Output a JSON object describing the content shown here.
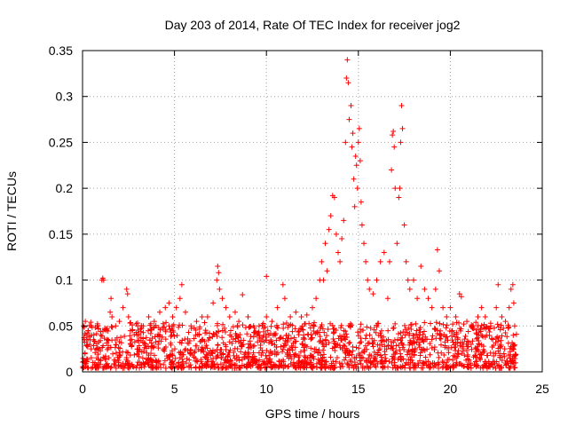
{
  "chart_data": {
    "type": "scatter",
    "title": "Day 203 of 2014, Rate Of TEC Index for receiver jog2",
    "xlabel": "GPS time / hours",
    "ylabel": "ROTI / TECUs",
    "xlim": [
      0,
      25
    ],
    "ylim": [
      0,
      0.35
    ],
    "x_ticks": [
      0,
      5,
      10,
      15,
      20,
      25
    ],
    "y_ticks": [
      0,
      0.05,
      0.1,
      0.15,
      0.2,
      0.25,
      0.3,
      0.35
    ],
    "x_tick_labels": [
      "0",
      "5",
      "10",
      "15",
      "20",
      "25"
    ],
    "y_tick_labels": [
      "0",
      "0.05",
      "0.1",
      "0.15",
      "0.2",
      "0.25",
      "0.3",
      "0.35"
    ],
    "grid": true,
    "marker": "+",
    "color": "#ff0000",
    "series": [
      {
        "name": "ROTI",
        "points": [
          [
            0.05,
            0.05
          ],
          [
            0.1,
            0.035
          ],
          [
            0.15,
            0.055
          ],
          [
            0.2,
            0.04
          ],
          [
            0.3,
            0.045
          ],
          [
            0.4,
            0.03
          ],
          [
            0.5,
            0.04
          ],
          [
            0.6,
            0.035
          ],
          [
            0.8,
            0.05
          ],
          [
            1.0,
            0.04
          ],
          [
            1.05,
            0.1
          ],
          [
            1.1,
            0.102
          ],
          [
            1.15,
            0.1
          ],
          [
            1.3,
            0.045
          ],
          [
            1.5,
            0.065
          ],
          [
            1.55,
            0.08
          ],
          [
            1.6,
            0.06
          ],
          [
            1.8,
            0.05
          ],
          [
            2.0,
            0.055
          ],
          [
            2.2,
            0.07
          ],
          [
            2.4,
            0.09
          ],
          [
            2.45,
            0.085
          ],
          [
            2.5,
            0.06
          ],
          [
            2.7,
            0.045
          ],
          [
            3.0,
            0.05
          ],
          [
            3.3,
            0.05
          ],
          [
            3.6,
            0.06
          ],
          [
            3.9,
            0.055
          ],
          [
            4.2,
            0.065
          ],
          [
            4.5,
            0.07
          ],
          [
            4.7,
            0.075
          ],
          [
            4.9,
            0.06
          ],
          [
            5.1,
            0.07
          ],
          [
            5.3,
            0.08
          ],
          [
            5.4,
            0.095
          ],
          [
            5.6,
            0.065
          ],
          [
            5.9,
            0.05
          ],
          [
            6.2,
            0.055
          ],
          [
            6.5,
            0.06
          ],
          [
            6.8,
            0.06
          ],
          [
            7.1,
            0.075
          ],
          [
            7.3,
            0.1
          ],
          [
            7.35,
            0.115
          ],
          [
            7.4,
            0.108
          ],
          [
            7.45,
            0.09
          ],
          [
            7.6,
            0.08
          ],
          [
            7.8,
            0.07
          ],
          [
            8.0,
            0.06
          ],
          [
            8.3,
            0.065
          ],
          [
            8.5,
            0.055
          ],
          [
            8.7,
            0.084
          ],
          [
            9.0,
            0.06
          ],
          [
            9.3,
            0.05
          ],
          [
            9.6,
            0.05
          ],
          [
            10.0,
            0.104
          ],
          [
            10.0,
            0.06
          ],
          [
            10.3,
            0.055
          ],
          [
            10.6,
            0.07
          ],
          [
            10.9,
            0.095
          ],
          [
            11.0,
            0.08
          ],
          [
            11.3,
            0.06
          ],
          [
            11.6,
            0.065
          ],
          [
            11.9,
            0.06
          ],
          [
            12.2,
            0.062
          ],
          [
            12.5,
            0.07
          ],
          [
            12.7,
            0.08
          ],
          [
            12.9,
            0.1
          ],
          [
            13.0,
            0.12
          ],
          [
            13.1,
            0.1
          ],
          [
            13.2,
            0.14
          ],
          [
            13.3,
            0.11
          ],
          [
            13.4,
            0.155
          ],
          [
            13.5,
            0.17
          ],
          [
            13.6,
            0.192
          ],
          [
            13.7,
            0.19
          ],
          [
            13.8,
            0.15
          ],
          [
            13.9,
            0.13
          ],
          [
            14.0,
            0.12
          ],
          [
            14.1,
            0.145
          ],
          [
            14.2,
            0.165
          ],
          [
            14.3,
            0.25
          ],
          [
            14.35,
            0.32
          ],
          [
            14.4,
            0.34
          ],
          [
            14.45,
            0.315
          ],
          [
            14.5,
            0.275
          ],
          [
            14.6,
            0.29
          ],
          [
            14.65,
            0.245
          ],
          [
            14.7,
            0.26
          ],
          [
            14.75,
            0.21
          ],
          [
            14.8,
            0.18
          ],
          [
            14.85,
            0.235
          ],
          [
            14.9,
            0.225
          ],
          [
            14.95,
            0.2
          ],
          [
            15.0,
            0.25
          ],
          [
            15.05,
            0.265
          ],
          [
            15.1,
            0.23
          ],
          [
            15.15,
            0.185
          ],
          [
            15.2,
            0.16
          ],
          [
            15.3,
            0.14
          ],
          [
            15.4,
            0.12
          ],
          [
            15.5,
            0.1
          ],
          [
            15.6,
            0.09
          ],
          [
            15.8,
            0.085
          ],
          [
            16.0,
            0.1
          ],
          [
            16.2,
            0.12
          ],
          [
            16.4,
            0.13
          ],
          [
            16.6,
            0.08
          ],
          [
            16.7,
            0.12
          ],
          [
            16.8,
            0.22
          ],
          [
            16.85,
            0.258
          ],
          [
            16.9,
            0.262
          ],
          [
            16.95,
            0.245
          ],
          [
            17.0,
            0.2
          ],
          [
            17.1,
            0.14
          ],
          [
            17.2,
            0.19
          ],
          [
            17.25,
            0.2
          ],
          [
            17.3,
            0.25
          ],
          [
            17.35,
            0.29
          ],
          [
            17.4,
            0.265
          ],
          [
            17.5,
            0.16
          ],
          [
            17.6,
            0.12
          ],
          [
            17.7,
            0.1
          ],
          [
            17.8,
            0.09
          ],
          [
            18.0,
            0.1
          ],
          [
            18.2,
            0.08
          ],
          [
            18.4,
            0.115
          ],
          [
            18.6,
            0.09
          ],
          [
            18.8,
            0.08
          ],
          [
            19.0,
            0.07
          ],
          [
            19.2,
            0.09
          ],
          [
            19.3,
            0.133
          ],
          [
            19.4,
            0.11
          ],
          [
            19.6,
            0.07
          ],
          [
            19.8,
            0.06
          ],
          [
            20.0,
            0.07
          ],
          [
            20.3,
            0.06
          ],
          [
            20.5,
            0.085
          ],
          [
            20.6,
            0.082
          ],
          [
            20.9,
            0.055
          ],
          [
            21.2,
            0.05
          ],
          [
            21.5,
            0.06
          ],
          [
            21.7,
            0.07
          ],
          [
            21.9,
            0.06
          ],
          [
            22.2,
            0.05
          ],
          [
            22.5,
            0.07
          ],
          [
            22.6,
            0.095
          ],
          [
            22.8,
            0.06
          ],
          [
            23.0,
            0.055
          ],
          [
            23.2,
            0.07
          ],
          [
            23.3,
            0.09
          ],
          [
            23.4,
            0.095
          ],
          [
            23.45,
            0.075
          ],
          [
            23.5,
            0.05
          ]
        ]
      }
    ]
  }
}
